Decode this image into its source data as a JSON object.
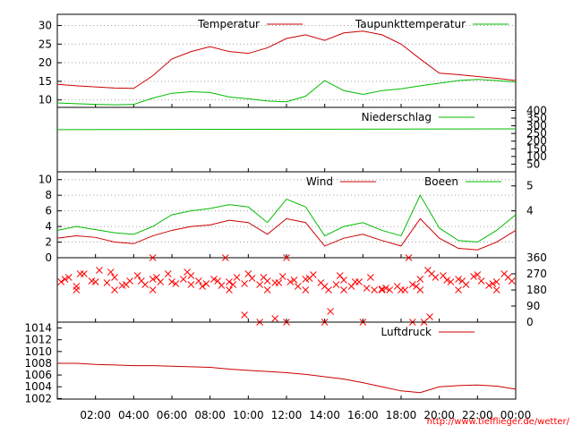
{
  "page": {
    "source_url": "http://www.tiefflieger.de/wetter/"
  },
  "x_axis": {
    "ticks": [
      "02:00",
      "04:00",
      "06:00",
      "08:00",
      "10:00",
      "12:00",
      "14:00",
      "16:00",
      "18:00",
      "20:00",
      "22:00",
      "00:00"
    ],
    "range_hours": [
      0,
      24
    ]
  },
  "colors": {
    "red": "#ff0000",
    "darkred": "#cc0000",
    "green": "#00bb00",
    "grid": "#a0a0a0",
    "frame": "#000000"
  },
  "chart_data": [
    {
      "type": "line",
      "panel": "temperature",
      "ylim": [
        8,
        33
      ],
      "yticks": [
        "10",
        "15",
        "20",
        "25",
        "30"
      ],
      "yticks_values": [
        10,
        15,
        20,
        25,
        30
      ],
      "grid": true,
      "legend": "top-right",
      "x": [
        0,
        1,
        2,
        3,
        4,
        5,
        6,
        7,
        8,
        9,
        10,
        11,
        12,
        13,
        14,
        15,
        16,
        17,
        18,
        19,
        20,
        21,
        22,
        23,
        24
      ],
      "series": [
        {
          "name": "Temperatur",
          "color": "#cc0000",
          "values": [
            14.2,
            13.8,
            13.5,
            13.2,
            13.1,
            16.5,
            21.0,
            23.0,
            24.3,
            23.0,
            22.5,
            24.0,
            26.5,
            27.5,
            26.0,
            28.0,
            28.5,
            27.5,
            25.0,
            21.0,
            17.2,
            16.8,
            16.3,
            15.8,
            15.2
          ]
        },
        {
          "name": "Taupunkttemperatur",
          "color": "#00bb00",
          "values": [
            9.2,
            9.0,
            8.8,
            8.7,
            8.8,
            10.5,
            11.8,
            12.2,
            12.0,
            10.8,
            10.3,
            9.7,
            9.5,
            11.0,
            15.2,
            12.5,
            11.5,
            12.5,
            13.0,
            13.8,
            14.5,
            15.2,
            15.5,
            15.2,
            14.8
          ]
        }
      ]
    },
    {
      "type": "line",
      "panel": "precipitation",
      "ylim": [
        0,
        420
      ],
      "yticks_right": [
        "50",
        "100",
        "150",
        "200",
        "250",
        "300",
        "350",
        "400"
      ],
      "yticks_right_values": [
        50,
        100,
        150,
        200,
        250,
        300,
        350,
        400
      ],
      "legend": "top-right",
      "series": [
        {
          "name": "Niederschlag",
          "color": "#00bb00",
          "x": [
            0,
            24
          ],
          "values": [
            275,
            280
          ]
        }
      ]
    },
    {
      "type": "line",
      "panel": "wind",
      "ylim": [
        0,
        11
      ],
      "yticks": [
        "0",
        "2",
        "4",
        "6",
        "8",
        "10"
      ],
      "yticks_values": [
        0,
        2,
        4,
        6,
        8,
        10
      ],
      "yticks_right": [
        "4",
        "5"
      ],
      "yticks_right_values": [
        6.0,
        9.2
      ],
      "grid": true,
      "legend": "top-right",
      "x": [
        0,
        1,
        2,
        3,
        4,
        5,
        6,
        7,
        8,
        9,
        10,
        11,
        12,
        13,
        14,
        15,
        16,
        17,
        18,
        19,
        20,
        21,
        22,
        23,
        24
      ],
      "series": [
        {
          "name": "Wind",
          "color": "#cc0000",
          "values": [
            2.5,
            2.8,
            2.6,
            2.0,
            1.8,
            2.8,
            3.5,
            4.0,
            4.2,
            4.8,
            4.5,
            3.0,
            5.0,
            4.5,
            1.5,
            2.5,
            3.0,
            2.2,
            1.5,
            5.0,
            2.5,
            1.2,
            1.0,
            2.0,
            3.5
          ]
        },
        {
          "name": "Boeen",
          "color": "#00bb00",
          "values": [
            3.5,
            4.0,
            3.6,
            3.2,
            3.0,
            4.0,
            5.5,
            6.0,
            6.3,
            6.8,
            6.5,
            4.5,
            7.5,
            6.5,
            2.8,
            4.0,
            4.5,
            3.5,
            2.8,
            8.0,
            3.8,
            2.2,
            2.0,
            3.5,
            5.5
          ]
        }
      ]
    },
    {
      "type": "scatter",
      "panel": "wind-direction",
      "ylim": [
        0,
        360
      ],
      "yticks_right": [
        "0",
        "90",
        "180",
        "270",
        "360"
      ],
      "yticks_right_values": [
        0,
        90,
        180,
        270,
        360
      ],
      "marker": "x",
      "color": "#ff0000",
      "x": [
        0.2,
        0.6,
        1.0,
        1.4,
        1.8,
        2.2,
        2.6,
        3.0,
        3.4,
        3.8,
        4.2,
        4.6,
        5.0,
        5.4,
        5.8,
        6.2,
        6.6,
        7.0,
        7.4,
        7.8,
        8.2,
        8.6,
        9.0,
        9.4,
        9.8,
        10.2,
        10.6,
        11.0,
        11.4,
        11.8,
        12.2,
        12.6,
        13.0,
        13.4,
        13.8,
        14.2,
        14.6,
        15.0,
        15.4,
        15.8,
        16.2,
        16.6,
        17.0,
        17.4,
        17.8,
        18.2,
        18.6,
        19.0,
        19.4,
        19.8,
        20.2,
        20.6,
        21.0,
        21.4,
        21.8,
        22.2,
        22.6,
        23.0,
        23.4,
        23.8,
        0.4,
        1.2,
        2.0,
        2.8,
        3.6,
        4.4,
        5.2,
        6.0,
        6.8,
        7.6,
        8.4,
        9.2,
        10.0,
        10.8,
        11.6,
        12.4,
        13.2,
        14.0,
        14.8,
        15.6,
        16.4,
        17.2,
        18.0,
        18.8,
        19.6,
        20.4,
        21.2,
        22.0,
        22.8,
        23.6,
        1.0,
        3.0,
        5.0,
        7.0,
        9.0,
        11.0,
        13.0,
        15.0,
        17.0,
        19.0,
        21.0,
        23.0,
        9.8,
        10.6,
        11.4,
        12.0,
        14.0,
        14.3,
        16.0,
        18.6,
        19.2,
        19.5,
        5.0,
        8.8,
        12.0,
        18.4
      ],
      "values": [
        225,
        250,
        200,
        270,
        230,
        290,
        220,
        250,
        205,
        230,
        260,
        210,
        240,
        225,
        270,
        215,
        240,
        260,
        230,
        215,
        240,
        205,
        225,
        250,
        215,
        245,
        210,
        230,
        220,
        255,
        225,
        200,
        240,
        265,
        220,
        180,
        210,
        235,
        200,
        225,
        190,
        180,
        185,
        180,
        200,
        180,
        210,
        240,
        290,
        250,
        260,
        225,
        240,
        210,
        255,
        230,
        205,
        225,
        270,
        230,
        240,
        270,
        225,
        280,
        210,
        230,
        250,
        225,
        280,
        200,
        230,
        210,
        270,
        250,
        220,
        235,
        245,
        200,
        260,
        225,
        250,
        190,
        180,
        200,
        270,
        235,
        230,
        265,
        215,
        250,
        180,
        180,
        180,
        210,
        180,
        180,
        180,
        180,
        180,
        180,
        180,
        180,
        40,
        0,
        20,
        0,
        0,
        60,
        0,
        0,
        0,
        30,
        360,
        360,
        360,
        360
      ]
    },
    {
      "type": "line",
      "panel": "pressure",
      "ylim": [
        1001.9,
        1015
      ],
      "yticks": [
        "1002",
        "1004",
        "1006",
        "1008",
        "1010",
        "1012",
        "1014"
      ],
      "yticks_values": [
        1002,
        1004,
        1006,
        1008,
        1010,
        1012,
        1014
      ],
      "legend": "top-right",
      "x": [
        0,
        1,
        2,
        3,
        4,
        5,
        6,
        7,
        8,
        9,
        10,
        11,
        12,
        13,
        14,
        15,
        16,
        17,
        18,
        19,
        20,
        21,
        22,
        23,
        24
      ],
      "series": [
        {
          "name": "Luftdruck",
          "color": "#cc0000",
          "values": [
            1008.0,
            1008.0,
            1007.8,
            1007.7,
            1007.6,
            1007.6,
            1007.5,
            1007.4,
            1007.3,
            1007.0,
            1006.8,
            1006.6,
            1006.4,
            1006.1,
            1005.7,
            1005.3,
            1004.7,
            1004.0,
            1003.3,
            1003.0,
            1004.0,
            1004.2,
            1004.3,
            1004.1,
            1003.6
          ]
        }
      ]
    }
  ]
}
